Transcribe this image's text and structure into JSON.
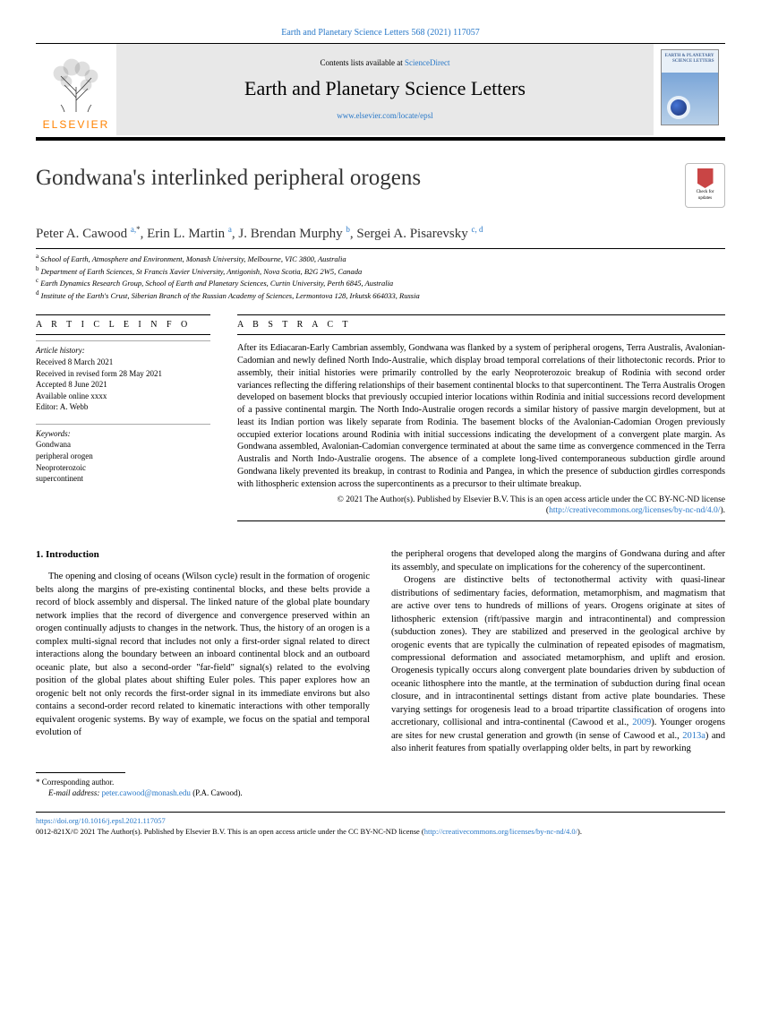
{
  "header": {
    "citation": "Earth and Planetary Science Letters 568 (2021) 117057"
  },
  "banner": {
    "publisher": "ELSEVIER",
    "contents_prefix": "Contents lists available at ",
    "contents_link": "ScienceDirect",
    "journal": "Earth and Planetary Science Letters",
    "url": "www.elsevier.com/locate/epsl",
    "cover_title": "EARTH & PLANETARY SCIENCE LETTERS"
  },
  "badge": {
    "line1": "Check for",
    "line2": "updates"
  },
  "article": {
    "title": "Gondwana's interlinked peripheral orogens",
    "authors_html": "Peter A. Cawood <sup class='link'>a,</sup><sup>*</sup>, Erin L. Martin <sup class='link'>a</sup>, J. Brendan Murphy <sup class='link'>b</sup>, Sergei A. Pisarevsky <sup class='link'>c, d</sup>",
    "affiliations": [
      {
        "sup": "a",
        "text": "School of Earth, Atmosphere and Environment, Monash University, Melbourne, VIC 3800, Australia"
      },
      {
        "sup": "b",
        "text": "Department of Earth Sciences, St Francis Xavier University, Antigonish, Nova Scotia, B2G 2W5, Canada"
      },
      {
        "sup": "c",
        "text": "Earth Dynamics Research Group, School of Earth and Planetary Sciences, Curtin University, Perth 6845, Australia"
      },
      {
        "sup": "d",
        "text": "Institute of the Earth's Crust, Siberian Branch of the Russian Academy of Sciences, Lermontova 128, Irkutsk 664033, Russia"
      }
    ]
  },
  "info": {
    "head": "A R T I C L E   I N F O",
    "history_label": "Article history:",
    "history": [
      "Received 8 March 2021",
      "Received in revised form 28 May 2021",
      "Accepted 8 June 2021",
      "Available online xxxx",
      "Editor: A. Webb"
    ],
    "keywords_label": "Keywords:",
    "keywords": [
      "Gondwana",
      "peripheral orogen",
      "Neoproterozoic",
      "supercontinent"
    ]
  },
  "abstract": {
    "head": "A B S T R A C T",
    "text": "After its Ediacaran-Early Cambrian assembly, Gondwana was flanked by a system of peripheral orogens, Terra Australis, Avalonian-Cadomian and newly defined North Indo-Australie, which display broad temporal correlations of their lithotectonic records. Prior to assembly, their initial histories were primarily controlled by the early Neoproterozoic breakup of Rodinia with second order variances reflecting the differing relationships of their basement continental blocks to that supercontinent. The Terra Australis Orogen developed on basement blocks that previously occupied interior locations within Rodinia and initial successions record development of a passive continental margin. The North Indo-Australie orogen records a similar history of passive margin development, but at least its Indian portion was likely separate from Rodinia. The basement blocks of the Avalonian-Cadomian Orogen previously occupied exterior locations around Rodinia with initial successions indicating the development of a convergent plate margin. As Gondwana assembled, Avalonian-Cadomian convergence terminated at about the same time as convergence commenced in the Terra Australis and North Indo-Australie orogens. The absence of a complete long-lived contemporaneous subduction girdle around Gondwana likely prevented its breakup, in contrast to Rodinia and Pangea, in which the presence of subduction girdles corresponds with lithospheric extension across the supercontinents as a precursor to their ultimate breakup.",
    "copyright": "© 2021 The Author(s). Published by Elsevier B.V. This is an open access article under the CC BY-NC-ND license (",
    "license_url": "http://creativecommons.org/licenses/by-nc-nd/4.0/",
    "close": ")."
  },
  "body": {
    "section": "1. Introduction",
    "p1": "The opening and closing of oceans (Wilson cycle) result in the formation of orogenic belts along the margins of pre-existing continental blocks, and these belts provide a record of block assembly and dispersal. The linked nature of the global plate boundary network implies that the record of divergence and convergence preserved within an orogen continually adjusts to changes in the network. Thus, the history of an orogen is a complex multi-signal record that includes not only a first-order signal related to direct interactions along the boundary between an inboard continental block and an outboard oceanic plate, but also a second-order \"far-field\" signal(s) related to the evolving position of the global plates about shifting Euler poles. This paper explores how an orogenic belt not only records the first-order signal in its immediate environs but also contains a second-order record related to kinematic interactions with other temporally equivalent orogenic systems. By way of example, we focus on the spatial and temporal evolution of",
    "p2": "the peripheral orogens that developed along the margins of Gondwana during and after its assembly, and speculate on implications for the coherency of the supercontinent.",
    "p3a": "Orogens are distinctive belts of tectonothermal activity with quasi-linear distributions of sedimentary facies, deformation, metamorphism, and magmatism that are active over tens to hundreds of millions of years. Orogens originate at sites of lithospheric extension (rift/passive margin and intracontinental) and compression (subduction zones). They are stabilized and preserved in the geological archive by orogenic events that are typically the culmination of repeated episodes of magmatism, compressional deformation and associated metamorphism, and uplift and erosion. Orogenesis typically occurs along convergent plate boundaries driven by subduction of oceanic lithosphere into the mantle, at the termination of subduction during final ocean closure, and in intracontinental settings distant from active plate boundaries. These varying settings for orogenesis lead to a broad tripartite classification of orogens into accretionary, collisional and intra-continental (Cawood et al., ",
    "ref1": "2009",
    "p3b": "). Younger orogens are sites for new crustal generation and growth (in sense of Cawood et al., ",
    "ref2": "2013a",
    "p3c": ") and also inherit features from spatially overlapping older belts, in part by reworking"
  },
  "corr": {
    "star": "* Corresponding author.",
    "email_label": "E-mail address: ",
    "email": "peter.cawood@monash.edu",
    "email_suffix": " (P.A. Cawood)."
  },
  "footer": {
    "doi": "https://doi.org/10.1016/j.epsl.2021.117057",
    "line2a": "0012-821X/© 2021 The Author(s). Published by Elsevier B.V. This is an open access article under the CC BY-NC-ND license (",
    "line2b": "http://creativecommons.org/licenses/by-nc-nd/4.0/",
    "line2c": ")."
  }
}
